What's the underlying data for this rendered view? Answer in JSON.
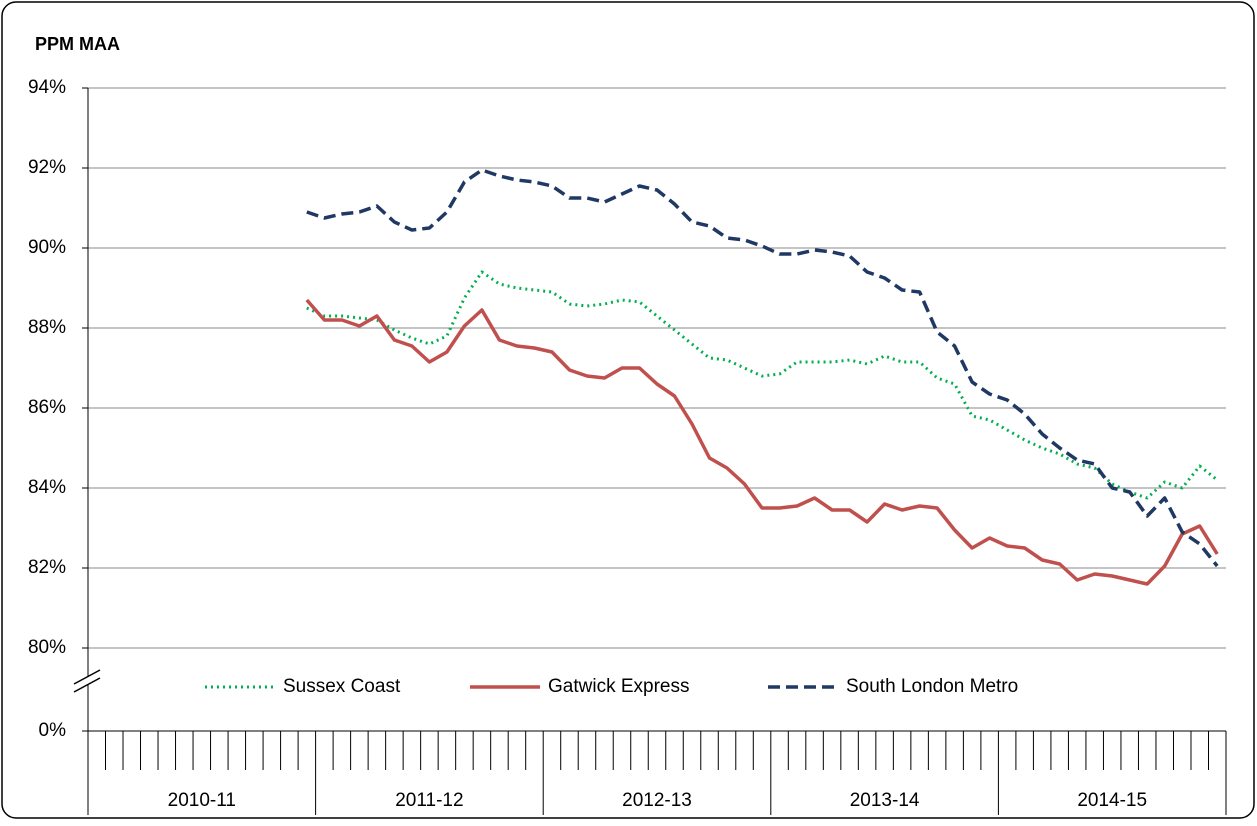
{
  "chart_data": {
    "type": "line",
    "title": "PPM MAA",
    "categories": [
      null,
      null,
      null,
      null,
      null,
      null,
      null,
      null,
      null,
      null,
      null,
      null,
      null,
      null,
      null,
      null,
      null,
      null,
      null,
      null,
      null,
      null,
      null,
      null,
      null,
      null,
      null,
      null,
      null,
      null,
      null,
      null,
      null,
      null,
      null,
      null,
      null,
      null,
      null,
      null,
      null,
      null,
      null,
      null,
      null,
      null,
      null,
      null,
      null,
      null,
      null,
      null,
      null,
      null,
      null,
      null,
      null,
      null,
      null,
      null,
      null,
      null,
      null,
      null,
      null
    ],
    "groups": [
      "2010-11",
      "2011-12",
      "2012-13",
      "2013-14",
      "2014-15"
    ],
    "ylim": [
      80,
      94
    ],
    "yticks": [
      {
        "value": 80,
        "label": "80%"
      },
      {
        "value": 82,
        "label": "82%"
      },
      {
        "value": 84,
        "label": "84%"
      },
      {
        "value": 86,
        "label": "86%"
      },
      {
        "value": 88,
        "label": "88%"
      },
      {
        "value": 90,
        "label": "90%"
      },
      {
        "value": 92,
        "label": "92%"
      },
      {
        "value": 94,
        "label": "94%"
      }
    ],
    "ybreak_tick": {
      "value": 0,
      "label": "0%"
    },
    "grid": true,
    "series": [
      {
        "name": "Sussex Coast",
        "color": "#00b050",
        "dash": "dotted",
        "values": [
          null,
          null,
          null,
          null,
          null,
          null,
          null,
          null,
          null,
          null,
          null,
          null,
          88.5,
          88.3,
          88.3,
          88.25,
          88.2,
          87.95,
          87.75,
          87.6,
          87.8,
          88.75,
          89.4,
          89.1,
          89.0,
          88.95,
          88.9,
          88.6,
          88.55,
          88.6,
          88.7,
          88.65,
          88.3,
          87.95,
          87.6,
          87.25,
          87.2,
          87.0,
          86.8,
          86.85,
          87.15,
          87.15,
          87.15,
          87.2,
          87.1,
          87.3,
          87.15,
          87.15,
          86.75,
          86.6,
          85.8,
          85.7,
          85.45,
          85.2,
          85.0,
          84.85,
          84.6,
          84.5,
          84.1,
          83.9,
          83.75,
          84.15,
          84.0,
          84.55,
          84.2
        ]
      },
      {
        "name": "Gatwick Express",
        "color": "#c0504d",
        "dash": "solid",
        "values": [
          null,
          null,
          null,
          null,
          null,
          null,
          null,
          null,
          null,
          null,
          null,
          null,
          88.7,
          88.2,
          88.2,
          88.05,
          88.3,
          87.7,
          87.55,
          87.15,
          87.4,
          88.05,
          88.45,
          87.7,
          87.55,
          87.5,
          87.4,
          86.95,
          86.8,
          86.75,
          87.0,
          87.0,
          86.6,
          86.3,
          85.6,
          84.75,
          84.5,
          84.1,
          83.5,
          83.5,
          83.55,
          83.75,
          83.45,
          83.45,
          83.15,
          83.6,
          83.45,
          83.55,
          83.5,
          82.95,
          82.5,
          82.75,
          82.55,
          82.5,
          82.2,
          82.1,
          81.7,
          81.85,
          81.8,
          81.7,
          81.6,
          82.05,
          82.85,
          83.05,
          82.35
        ]
      },
      {
        "name": "South London Metro",
        "color": "#1f3864",
        "dash": "dashed",
        "values": [
          null,
          null,
          null,
          null,
          null,
          null,
          null,
          null,
          null,
          null,
          null,
          null,
          90.9,
          90.75,
          90.85,
          90.9,
          91.05,
          90.65,
          90.45,
          90.5,
          90.9,
          91.65,
          91.95,
          91.8,
          91.7,
          91.65,
          91.55,
          91.25,
          91.25,
          91.15,
          91.35,
          91.55,
          91.45,
          91.1,
          90.65,
          90.55,
          90.25,
          90.2,
          90.05,
          89.85,
          89.85,
          89.95,
          89.9,
          89.8,
          89.4,
          89.25,
          88.95,
          88.9,
          87.9,
          87.55,
          86.65,
          86.35,
          86.2,
          85.85,
          85.35,
          85.0,
          84.7,
          84.6,
          84.0,
          83.9,
          83.3,
          83.75,
          82.9,
          82.6,
          82.05
        ]
      }
    ]
  }
}
